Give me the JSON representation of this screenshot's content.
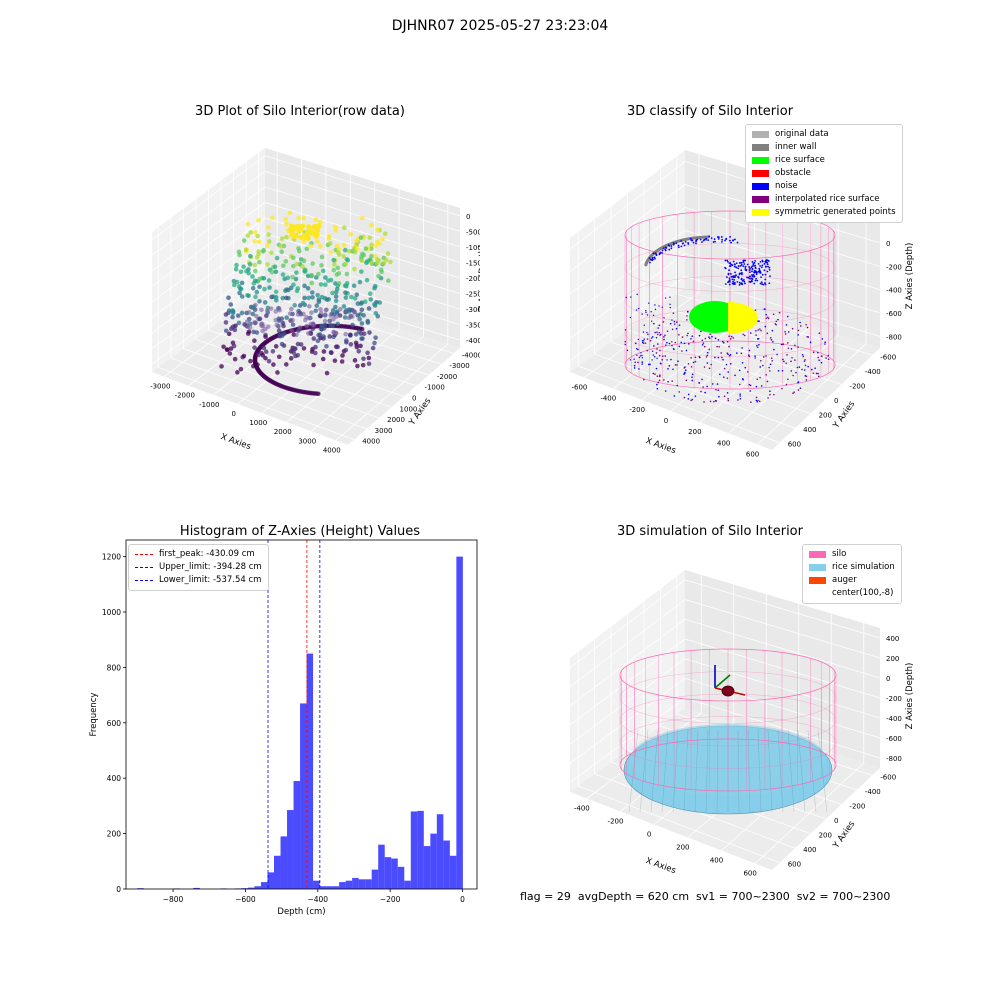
{
  "figure": {
    "suptitle": "DJHNR07 2025-05-27 23:23:04",
    "flag_text": "flag = 29  avgDepth = 620 cm  sv1 = 700~2300  sv2 = 700~2300"
  },
  "panels": {
    "raw": {
      "title": "3D Plot of Silo Interior(row data)",
      "xlabel": "X Axies",
      "ylabel": "Y Axies",
      "zlabel": "Z Axies (Depth)",
      "xticks": [
        "-3000",
        "-2000",
        "-1000",
        "0",
        "1000",
        "2000",
        "3000",
        "4000"
      ],
      "yticks": [
        "4000",
        "3000",
        "2000",
        "1000",
        "0",
        "-1000",
        "-2000",
        "-3000",
        "-4000"
      ],
      "zticks": [
        "0",
        "-500",
        "-1000",
        "-1500",
        "-2000",
        "-2500",
        "-3000",
        "-3500",
        "-4000"
      ]
    },
    "classify": {
      "title": "3D classify of Silo Interior",
      "xlabel": "X Axies",
      "ylabel": "Y Axies",
      "zlabel": "Z Axies (Depth)",
      "xticks": [
        "-600",
        "-400",
        "-200",
        "0",
        "200",
        "400",
        "600"
      ],
      "yticks": [
        "600",
        "400",
        "200",
        "0",
        "-200",
        "-400",
        "-600"
      ],
      "zticks": [
        "200",
        "0",
        "-200",
        "-400",
        "-600",
        "-800"
      ],
      "legend": [
        {
          "label": "original data",
          "color": "#b0b0b0"
        },
        {
          "label": "inner wall",
          "color": "#808080"
        },
        {
          "label": "rice surface",
          "color": "#00ff00"
        },
        {
          "label": "obstacle",
          "color": "#ff0000"
        },
        {
          "label": "noise",
          "color": "#0000ff"
        },
        {
          "label": "interpolated rice surface",
          "color": "#800080"
        },
        {
          "label": "symmetric generated points",
          "color": "#ffff00"
        }
      ]
    },
    "simulation": {
      "title": "3D simulation of Silo Interior",
      "xlabel": "X Axies",
      "ylabel": "Y Axies",
      "zlabel": "Z Axies (Depth)",
      "xticks": [
        "-400",
        "-200",
        "0",
        "200",
        "400",
        "600"
      ],
      "yticks": [
        "600",
        "400",
        "200",
        "0",
        "-200",
        "-400",
        "-600"
      ],
      "zticks": [
        "400",
        "200",
        "0",
        "-200",
        "-400",
        "-600",
        "-800"
      ],
      "legend": [
        {
          "label": "silo",
          "color": "#ff69b4"
        },
        {
          "label": "rice simulation",
          "color": "#87ceeb"
        },
        {
          "label": "auger",
          "color": "#ff4500"
        },
        {
          "label": "center(100,-8)",
          "color": "#ffffff"
        }
      ]
    }
  },
  "chart_data": {
    "type": "bar",
    "title": "Histogram of Z-Axies (Height) Values",
    "xlabel": "Depth (cm)",
    "ylabel": "Frequency",
    "xlim": [
      -930,
      40
    ],
    "ylim": [
      0,
      1260
    ],
    "xticks": [
      -800,
      -600,
      -400,
      -200,
      0
    ],
    "yticks": [
      0,
      200,
      400,
      600,
      800,
      1000,
      1200
    ],
    "bar_color": "#0000ff",
    "bin_width": 18,
    "bins": [
      {
        "x": -890,
        "value": 3
      },
      {
        "x": -790,
        "value": 2
      },
      {
        "x": -735,
        "value": 4
      },
      {
        "x": -660,
        "value": 2
      },
      {
        "x": -620,
        "value": 2
      },
      {
        "x": -602,
        "value": 3
      },
      {
        "x": -584,
        "value": 5
      },
      {
        "x": -566,
        "value": 10
      },
      {
        "x": -548,
        "value": 25
      },
      {
        "x": -530,
        "value": 60
      },
      {
        "x": -512,
        "value": 120
      },
      {
        "x": -494,
        "value": 190
      },
      {
        "x": -476,
        "value": 285
      },
      {
        "x": -458,
        "value": 390
      },
      {
        "x": -440,
        "value": 670
      },
      {
        "x": -422,
        "value": 850
      },
      {
        "x": -404,
        "value": 30
      },
      {
        "x": -386,
        "value": 10
      },
      {
        "x": -368,
        "value": 10
      },
      {
        "x": -350,
        "value": 10
      },
      {
        "x": -332,
        "value": 25
      },
      {
        "x": -314,
        "value": 30
      },
      {
        "x": -296,
        "value": 40
      },
      {
        "x": -278,
        "value": 35
      },
      {
        "x": -260,
        "value": 35
      },
      {
        "x": -242,
        "value": 70
      },
      {
        "x": -224,
        "value": 160
      },
      {
        "x": -206,
        "value": 115
      },
      {
        "x": -188,
        "value": 110
      },
      {
        "x": -170,
        "value": 80
      },
      {
        "x": -152,
        "value": 30
      },
      {
        "x": -134,
        "value": 280
      },
      {
        "x": -116,
        "value": 282
      },
      {
        "x": -98,
        "value": 155
      },
      {
        "x": -80,
        "value": 200
      },
      {
        "x": -62,
        "value": 270
      },
      {
        "x": -44,
        "value": 175
      },
      {
        "x": -26,
        "value": 120
      },
      {
        "x": -8,
        "value": 1200
      }
    ],
    "vlines": [
      {
        "label": "first_peak: -430.09 cm",
        "x": -430.09,
        "color": "#ff0000"
      },
      {
        "label": "Upper_limit: -394.28 cm",
        "x": -394.28,
        "color": "#0000ff"
      },
      {
        "label": "Lower_limit: -537.54 cm",
        "x": -537.54,
        "color": "#0000ff"
      }
    ]
  }
}
